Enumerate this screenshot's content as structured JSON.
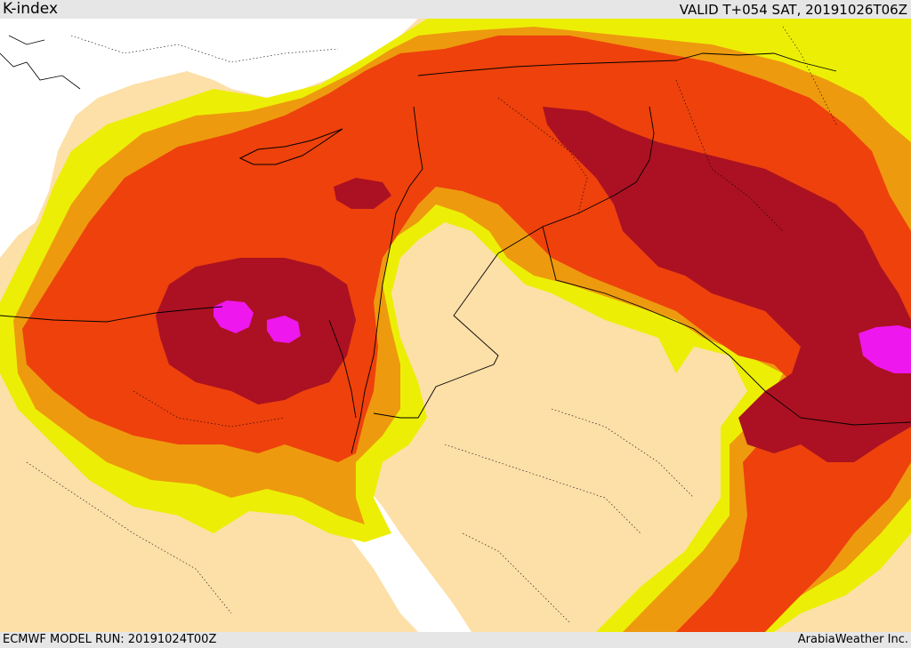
{
  "header": {
    "title": "K-index",
    "valid": "VALID T+054 SAT, 20191026T06Z"
  },
  "footer": {
    "model_run": "ECMWF MODEL RUN: 20191024T00Z",
    "credit": "ArabiaWeather Inc."
  },
  "colors": {
    "land_background": "#fddfa8",
    "sea": "#ffffff",
    "level_1": "#ecef05",
    "level_2": "#ee9a0e",
    "level_3": "#ee410c",
    "level_4": "#ab1122",
    "level_5": "#ee17ee",
    "borders": "#000000"
  }
}
